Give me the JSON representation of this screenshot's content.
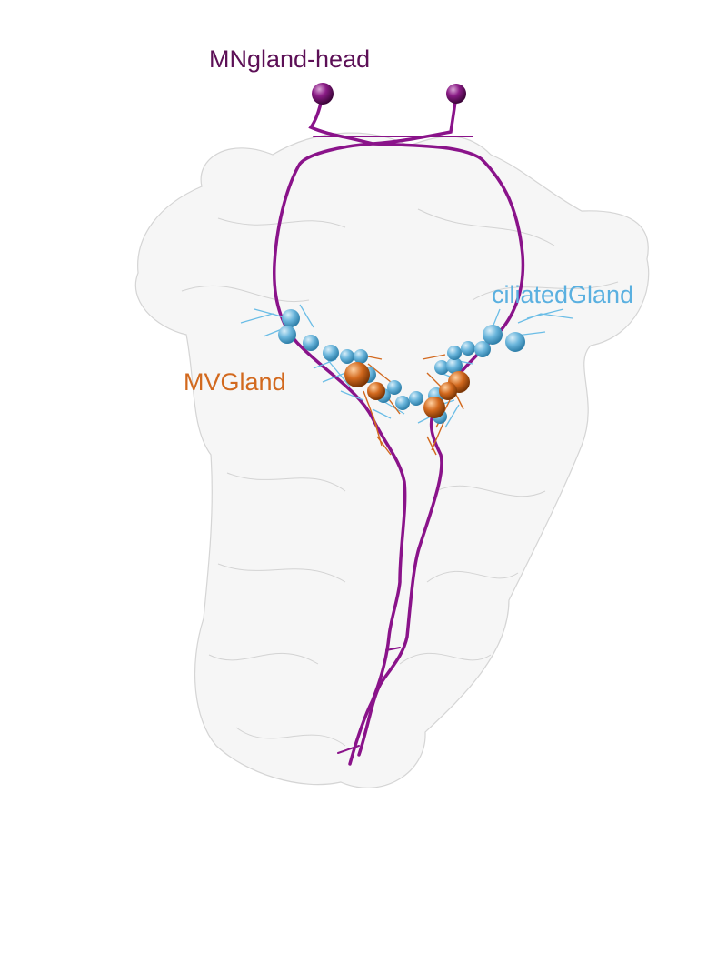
{
  "labels": {
    "mngland_head": "MNgland-head",
    "ciliated_gland": "ciliatedGland",
    "mv_gland": "MVGland"
  },
  "colors": {
    "mngland_head": "#5c0f56",
    "mngland_neurite": "#8a138a",
    "ciliated_gland": "#5ab0e0",
    "ciliated_sphere": "#6bb6dc",
    "mv_gland": "#d2691e",
    "mv_sphere": "#cc6a12",
    "body_outline": "#9a9a9a",
    "body_fill": "#eeeeee"
  }
}
